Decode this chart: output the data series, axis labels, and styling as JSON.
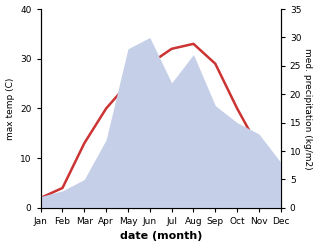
{
  "months": [
    "Jan",
    "Feb",
    "Mar",
    "Apr",
    "May",
    "Jun",
    "Jul",
    "Aug",
    "Sep",
    "Oct",
    "Nov",
    "Dec"
  ],
  "temperature": [
    2,
    4,
    13,
    20,
    25,
    29,
    32,
    33,
    29,
    20,
    12,
    5
  ],
  "precipitation": [
    2,
    3,
    5,
    12,
    28,
    30,
    22,
    27,
    18,
    15,
    13,
    8
  ],
  "temp_color": "#cc3333",
  "precip_fill_color": "#c5cfe8",
  "temp_ylim": [
    0,
    40
  ],
  "precip_ylim": [
    0,
    35
  ],
  "temp_yticks": [
    0,
    10,
    20,
    30,
    40
  ],
  "precip_yticks": [
    0,
    5,
    10,
    15,
    20,
    25,
    30,
    35
  ],
  "xlabel": "date (month)",
  "ylabel_left": "max temp (C)",
  "ylabel_right": "med. precipitation (kg/m2)",
  "background_color": "#ffffff",
  "temp_linewidth": 1.8
}
